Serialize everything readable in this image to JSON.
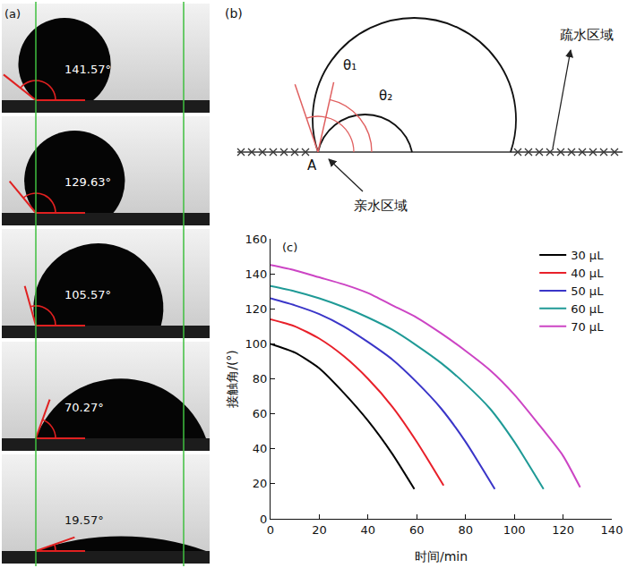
{
  "panel_a": {
    "panel_label": "(a)",
    "contact_angles": [
      {
        "value": 141.57,
        "label": "141.57°"
      },
      {
        "value": 129.63,
        "label": "129.63°"
      },
      {
        "value": 105.57,
        "label": "105.57°"
      },
      {
        "value": 70.27,
        "label": "70.27°"
      },
      {
        "value": 19.57,
        "label": "19.57°"
      }
    ]
  },
  "panel_b": {
    "panel_label": "(b)",
    "angle_labels": [
      "θ₁",
      "θ₂"
    ],
    "point_label": "A",
    "hydrophobic_label": "疏水区域",
    "hydrophilic_label": "亲水区域"
  },
  "chart_data": {
    "type": "line",
    "panel_label": "(c)",
    "x_title": "时间/min",
    "y_title": "接触角/(°)",
    "xlim": [
      0,
      140
    ],
    "xticks": [
      0,
      20,
      40,
      60,
      80,
      100,
      120,
      140
    ],
    "ylim": [
      0,
      160
    ],
    "yticks": [
      0,
      20,
      40,
      60,
      80,
      100,
      120,
      140,
      160
    ],
    "grid": false,
    "legend": "top-right",
    "marker": "none",
    "line_style": "solid",
    "series": [
      {
        "name": "30 μL",
        "color": "#000000",
        "x": [
          0,
          10,
          20,
          30,
          40,
          50,
          59
        ],
        "values": [
          100,
          95,
          86,
          72,
          56,
          37,
          17
        ]
      },
      {
        "name": "40 μL",
        "color": "#e8202a",
        "x": [
          0,
          10,
          20,
          30,
          40,
          50,
          60,
          71
        ],
        "values": [
          114,
          110,
          103,
          93,
          80,
          64,
          44,
          19
        ]
      },
      {
        "name": "50 μL",
        "color": "#3a35c8",
        "x": [
          0,
          10,
          20,
          30,
          40,
          50,
          60,
          70,
          80,
          92
        ],
        "values": [
          126,
          122,
          117,
          110,
          101,
          91,
          78,
          63,
          44,
          17
        ]
      },
      {
        "name": "60 μL",
        "color": "#1f9a96",
        "x": [
          0,
          10,
          20,
          30,
          40,
          50,
          60,
          70,
          80,
          90,
          100,
          112
        ],
        "values": [
          133,
          130,
          126,
          121,
          115,
          108,
          99,
          89,
          77,
          63,
          44,
          17
        ]
      },
      {
        "name": "70 μL",
        "color": "#cc44c4",
        "x": [
          0,
          10,
          20,
          30,
          40,
          50,
          60,
          70,
          80,
          90,
          100,
          110,
          120,
          127
        ],
        "values": [
          145,
          142,
          138,
          134,
          129,
          122,
          115,
          106,
          96,
          85,
          71,
          54,
          36,
          18
        ]
      }
    ]
  }
}
